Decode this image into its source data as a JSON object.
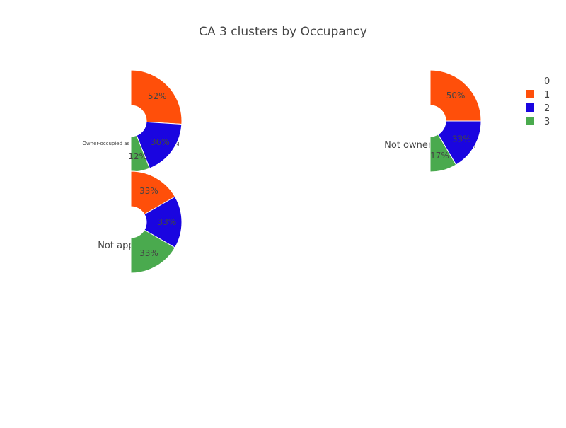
{
  "title": "CA 3 clusters by Occupancy",
  "colors": {
    "0": "#ffffff",
    "1": "#ff4f0a",
    "2": "#1a05e0",
    "3": "#4aaa4e"
  },
  "legend": {
    "placement": "top-right",
    "entries": [
      "0",
      "1",
      "2",
      "3"
    ]
  },
  "chart_data": [
    {
      "type": "pie",
      "hole": true,
      "shape": "semicircle",
      "subtitle": "Owner-occupied as a principal dwelling",
      "slices": [
        {
          "label": "1",
          "value": 52,
          "text": "52%"
        },
        {
          "label": "2",
          "value": 36,
          "text": "36%"
        },
        {
          "label": "3",
          "value": 12,
          "text": "12%"
        }
      ]
    },
    {
      "type": "pie",
      "hole": true,
      "shape": "semicircle",
      "subtitle": "Not owner-occupied",
      "slices": [
        {
          "label": "1",
          "value": 50,
          "text": "50%"
        },
        {
          "label": "2",
          "value": 33,
          "text": "33%"
        },
        {
          "label": "3",
          "value": 17,
          "text": "17%"
        }
      ]
    },
    {
      "type": "pie",
      "hole": true,
      "shape": "semicircle",
      "subtitle": "Not applicable",
      "slices": [
        {
          "label": "1",
          "value": 33.3,
          "text": "33%"
        },
        {
          "label": "2",
          "value": 33.3,
          "text": "33%"
        },
        {
          "label": "3",
          "value": 33.3,
          "text": "33%"
        }
      ]
    }
  ]
}
